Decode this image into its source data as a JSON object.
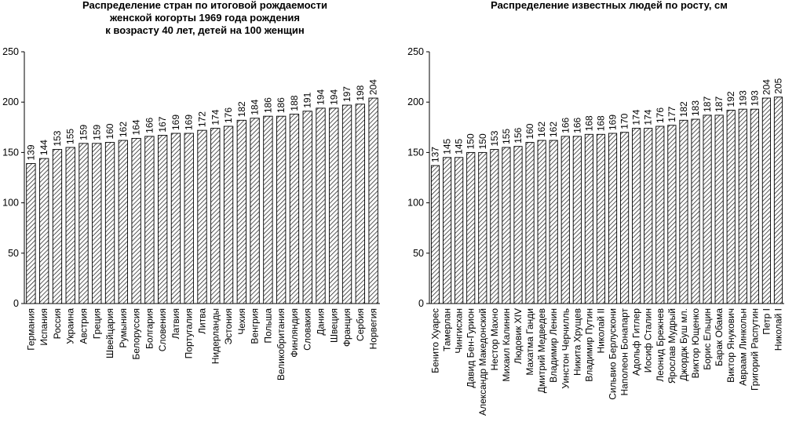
{
  "chart_data": [
    {
      "type": "bar",
      "title_lines": [
        "Распределение стран по итоговой рождаемости",
        "женской когорты 1969 года рождения",
        "к возрасту 40 лет, детей на 100 женщин"
      ],
      "categories": [
        "Германия",
        "Испания",
        "Россия",
        "Украина",
        "Австрия",
        "Греция",
        "Швейцария",
        "Румыния",
        "Белоруссия",
        "Болгария",
        "Словения",
        "Латвия",
        "Португалия",
        "Литва",
        "Нидерланды",
        "Эстония",
        "Чехия",
        "Венгрия",
        "Польша",
        "Великобритания",
        "Финляндия",
        "Словакия",
        "Дания",
        "Швеция",
        "Франция",
        "Сербия",
        "Норвегия"
      ],
      "values": [
        139,
        144,
        153,
        155,
        159,
        159,
        160,
        162,
        164,
        166,
        167,
        169,
        169,
        172,
        174,
        176,
        182,
        184,
        186,
        186,
        188,
        191,
        194,
        194,
        197,
        198,
        204
      ],
      "value_labels": [
        "139",
        "144",
        "153",
        "155",
        "159",
        "159",
        "160",
        "162",
        "164",
        "166",
        "167",
        "169",
        "169",
        "172",
        "174",
        "176",
        "182",
        "184",
        "186",
        "186",
        "188",
        "191",
        "194",
        "194",
        "197",
        "198",
        "204"
      ],
      "ylim": [
        0,
        250
      ],
      "yticks": [
        "0",
        "50",
        "100",
        "150",
        "200",
        "250"
      ],
      "grid": false,
      "bar_fill": "hatched"
    },
    {
      "type": "bar",
      "title_lines": [
        "Распределение известных людей по росту, см"
      ],
      "categories": [
        "Бенито Хуарес",
        "Тамерлан",
        "Чингисхан",
        "Давид Бен-Гурион",
        "Александр Македонский",
        "Нестор Махно",
        "Михаил Калинин",
        "Людовик XIV",
        "Махатма Ганди",
        "Дмитрий Медведев",
        "Владимир Ленин",
        "Уинстон Черчилль",
        "Никита Хрущев",
        "Владимир Путин",
        "Николай II",
        "Сильвио Берлускони",
        "Наполеон Бонапарт",
        "Адольф Гитлер",
        "Иосиф Сталин",
        "Леонид Брежнев",
        "Ярослав Мудрый",
        "Джордж Буш мл.",
        "Виктор Ющенко",
        "Борис Ельцин",
        "Барак Обама",
        "Виктор Янукович",
        "Авраам Линкольн",
        "Григорий Распутин",
        "Петр I",
        "Николай I"
      ],
      "values": [
        137,
        145,
        145,
        150,
        150,
        153,
        155,
        156,
        160,
        162,
        162,
        166,
        166,
        168,
        168,
        169,
        170,
        174,
        174,
        176,
        177,
        182,
        183,
        187,
        187,
        192,
        193,
        193,
        204,
        205
      ],
      "value_labels": [
        "137",
        "145",
        "145",
        "150",
        "150",
        "153",
        "155",
        "156",
        "160",
        "162",
        "162",
        "166",
        "166",
        "168",
        "168",
        "169",
        "170",
        "174",
        "174",
        "176",
        "177",
        "182",
        "183",
        "187",
        "187",
        "192",
        "193",
        "193",
        "204",
        "205"
      ],
      "ylim": [
        0,
        250
      ],
      "yticks": [
        "0",
        "50",
        "100",
        "150",
        "200",
        "250"
      ],
      "grid": false,
      "bar_fill": "hatched"
    }
  ]
}
